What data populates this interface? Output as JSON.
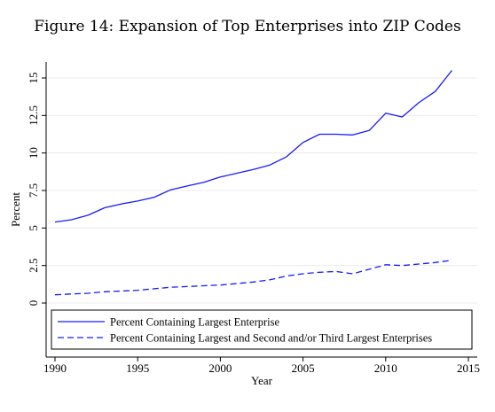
{
  "figure_title": "Figure 14: Expansion of Top Enterprises into ZIP Codes",
  "chart_data": {
    "type": "line",
    "title": "Figure 14: Expansion of Top Enterprises into ZIP Codes",
    "xlabel": "Year",
    "ylabel": "Percent",
    "xlim": [
      1990,
      2015
    ],
    "ylim": [
      0,
      15.5
    ],
    "x_ticks": [
      1990,
      1995,
      2000,
      2005,
      2010,
      2015
    ],
    "x_tick_labels": [
      "1990",
      "1995",
      "2000",
      "2005",
      "2010",
      "2015"
    ],
    "y_ticks": [
      0,
      2.5,
      5,
      7.5,
      10,
      12.5,
      15
    ],
    "y_tick_labels": [
      "0",
      "2.5",
      "5",
      "7.5",
      "10",
      "12.5",
      "15"
    ],
    "grid": true,
    "legend_position": "bottom",
    "x": [
      1990,
      1991,
      1992,
      1993,
      1994,
      1995,
      1996,
      1997,
      1998,
      1999,
      2000,
      2001,
      2002,
      2003,
      2004,
      2005,
      2006,
      2007,
      2008,
      2009,
      2010,
      2011,
      2012,
      2013,
      2014
    ],
    "series": [
      {
        "name": "Percent Containing Largest Enterprise",
        "style": "solid",
        "color": "#1a1aff",
        "values": [
          5.4,
          5.55,
          5.85,
          6.35,
          6.6,
          6.8,
          7.05,
          7.55,
          7.8,
          8.05,
          8.4,
          8.65,
          8.9,
          9.2,
          9.75,
          10.7,
          11.25,
          11.25,
          11.2,
          11.5,
          12.65,
          12.4,
          13.35,
          14.1,
          15.5
        ]
      },
      {
        "name": "Percent Containing Largest and Second and/or Third Largest Enterprises",
        "style": "dashed",
        "color": "#1a1aff",
        "values": [
          0.55,
          0.6,
          0.65,
          0.75,
          0.8,
          0.85,
          0.95,
          1.05,
          1.1,
          1.15,
          1.2,
          1.3,
          1.4,
          1.55,
          1.8,
          1.95,
          2.05,
          2.1,
          1.95,
          2.25,
          2.55,
          2.5,
          2.6,
          2.7,
          2.85
        ]
      }
    ]
  }
}
